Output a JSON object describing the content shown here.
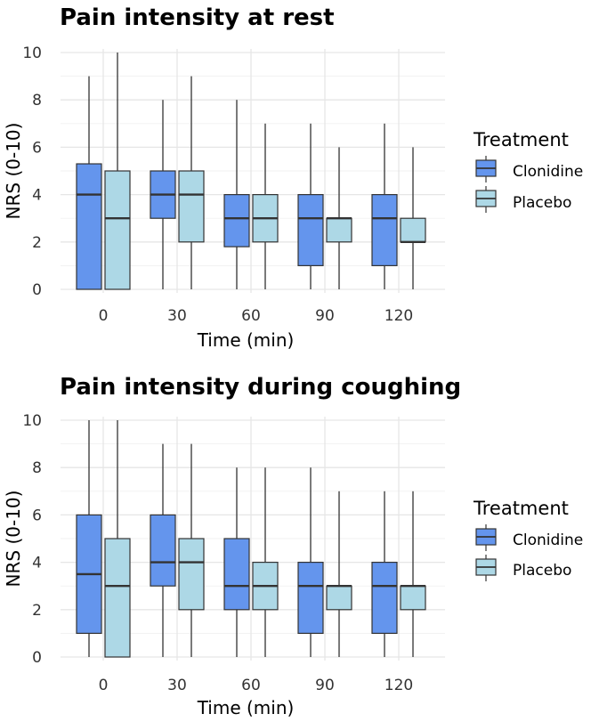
{
  "chart_data": [
    {
      "type": "boxplot",
      "title": "Pain intensity at rest",
      "xlabel": "Time (min)",
      "ylabel": "NRS (0-10)",
      "ylim": [
        0,
        10
      ],
      "yticks": [
        "0",
        "2",
        "4",
        "6",
        "8",
        "10"
      ],
      "categories": [
        "0",
        "30",
        "60",
        "90",
        "120"
      ],
      "legend": {
        "title": "Treatment",
        "position": "right"
      },
      "series": [
        {
          "name": "Clonidine",
          "color": "#6495ED",
          "boxes": [
            {
              "min": 0,
              "q1": 0,
              "median": 4,
              "q3": 5.3,
              "max": 9
            },
            {
              "min": 0,
              "q1": 3,
              "median": 4,
              "q3": 5,
              "max": 8
            },
            {
              "min": 0,
              "q1": 1.8,
              "median": 3,
              "q3": 4,
              "max": 8
            },
            {
              "min": 0,
              "q1": 1,
              "median": 3,
              "q3": 4,
              "max": 7
            },
            {
              "min": 0,
              "q1": 1,
              "median": 3,
              "q3": 4,
              "max": 7
            }
          ]
        },
        {
          "name": "Placebo",
          "color": "#ADD8E6",
          "boxes": [
            {
              "min": 0,
              "q1": 0,
              "median": 3,
              "q3": 5,
              "max": 10
            },
            {
              "min": 0,
              "q1": 2,
              "median": 4,
              "q3": 5,
              "max": 9
            },
            {
              "min": 0,
              "q1": 2,
              "median": 3,
              "q3": 4,
              "max": 7
            },
            {
              "min": 0,
              "q1": 2,
              "median": 3,
              "q3": 3,
              "max": 6
            },
            {
              "min": 0,
              "q1": 2,
              "median": 2,
              "q3": 3,
              "max": 6
            }
          ]
        }
      ]
    },
    {
      "type": "boxplot",
      "title": "Pain intensity during coughing",
      "xlabel": "Time (min)",
      "ylabel": "NRS (0-10)",
      "ylim": [
        0,
        10
      ],
      "yticks": [
        "0",
        "2",
        "4",
        "6",
        "8",
        "10"
      ],
      "categories": [
        "0",
        "30",
        "60",
        "90",
        "120"
      ],
      "legend": {
        "title": "Treatment",
        "position": "right"
      },
      "series": [
        {
          "name": "Clonidine",
          "color": "#6495ED",
          "boxes": [
            {
              "min": 0,
              "q1": 1,
              "median": 3.5,
              "q3": 6,
              "max": 10
            },
            {
              "min": 0,
              "q1": 3,
              "median": 4,
              "q3": 6,
              "max": 9
            },
            {
              "min": 0,
              "q1": 2,
              "median": 3,
              "q3": 5,
              "max": 8
            },
            {
              "min": 0,
              "q1": 1,
              "median": 3,
              "q3": 4,
              "max": 8
            },
            {
              "min": 0,
              "q1": 1,
              "median": 3,
              "q3": 4,
              "max": 7
            }
          ]
        },
        {
          "name": "Placebo",
          "color": "#ADD8E6",
          "boxes": [
            {
              "min": 0,
              "q1": 0,
              "median": 3,
              "q3": 5,
              "max": 10
            },
            {
              "min": 0,
              "q1": 2,
              "median": 4,
              "q3": 5,
              "max": 9
            },
            {
              "min": 0,
              "q1": 2,
              "median": 3,
              "q3": 4,
              "max": 8
            },
            {
              "min": 0,
              "q1": 2,
              "median": 3,
              "q3": 3,
              "max": 7
            },
            {
              "min": 0,
              "q1": 2,
              "median": 3,
              "q3": 3,
              "max": 7
            }
          ]
        }
      ]
    }
  ]
}
